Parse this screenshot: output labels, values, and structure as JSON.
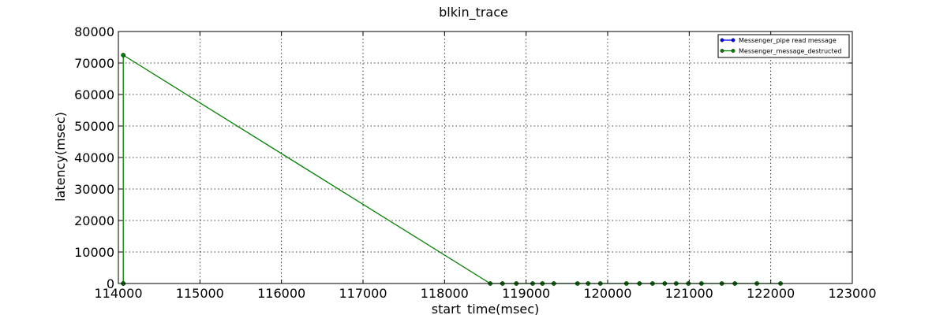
{
  "chart_data": {
    "type": "line",
    "title": "blkin_trace",
    "xlabel": "start_time(msec)",
    "ylabel": "latency(msec)",
    "xlim": [
      114000,
      123000
    ],
    "ylim": [
      0,
      80000
    ],
    "x_ticks": [
      114000,
      115000,
      116000,
      117000,
      118000,
      119000,
      120000,
      121000,
      122000,
      123000
    ],
    "y_ticks": [
      0,
      10000,
      20000,
      30000,
      40000,
      50000,
      60000,
      70000,
      80000
    ],
    "x_tick_labels": [
      "114000",
      "115000",
      "116000",
      "117000",
      "118000",
      "119000",
      "120000",
      "121000",
      "122000",
      "123000"
    ],
    "y_tick_labels": [
      "0",
      "10000",
      "20000",
      "30000",
      "40000",
      "50000",
      "60000",
      "70000",
      "80000"
    ],
    "grid": true,
    "legend_position": "top-right",
    "series": [
      {
        "name": "Messenger_pipe read message",
        "color": "#0000ff",
        "marker": "circle",
        "x": [
          114060
        ],
        "y": [
          0
        ]
      },
      {
        "name": "Messenger_message_destructed",
        "color": "#008000",
        "marker": "circle",
        "x": [
          114060,
          114060,
          118560,
          118710,
          118880,
          119080,
          119200,
          119340,
          119630,
          119760,
          119910,
          120230,
          120390,
          120550,
          120700,
          120840,
          120990,
          121150,
          121400,
          121560,
          121830,
          122120
        ],
        "y": [
          0,
          72500,
          0,
          0,
          0,
          0,
          0,
          0,
          0,
          0,
          0,
          0,
          0,
          0,
          0,
          0,
          0,
          0,
          0,
          0,
          0,
          0
        ]
      }
    ]
  }
}
